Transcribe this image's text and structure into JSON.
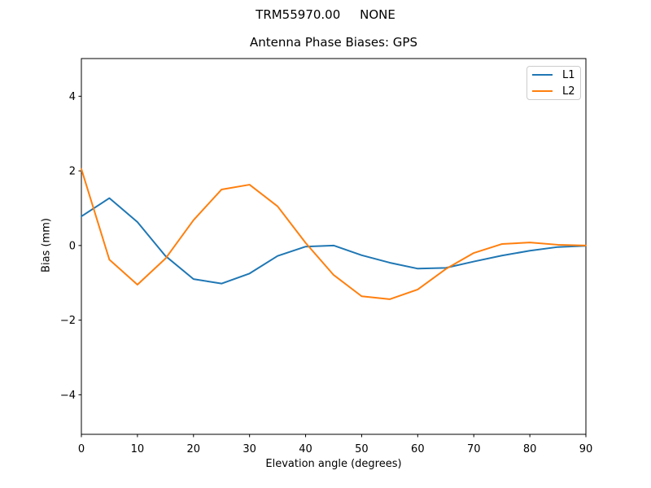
{
  "figure": {
    "suptitle": "TRM55970.00     NONE",
    "title": "Antenna Phase Biases: GPS",
    "background": "#ffffff"
  },
  "chart_data": {
    "type": "line",
    "suptitle": "TRM55970.00     NONE",
    "title": "Antenna Phase Biases: GPS",
    "xlabel": "Elevation angle (degrees)",
    "ylabel": "Bias (mm)",
    "xlim": [
      0,
      90
    ],
    "ylim": [
      -5.06,
      5.01
    ],
    "xticks": [
      0,
      10,
      20,
      30,
      40,
      50,
      60,
      70,
      80,
      90
    ],
    "yticks": [
      -4,
      -2,
      0,
      2,
      4
    ],
    "grid": false,
    "legend_position": "upper right",
    "x": [
      0,
      5,
      10,
      15,
      20,
      25,
      30,
      35,
      40,
      45,
      50,
      55,
      60,
      65,
      70,
      75,
      80,
      85,
      90
    ],
    "series": [
      {
        "name": "L1",
        "color": "#1f77b4",
        "values": [
          0.78,
          1.27,
          0.63,
          -0.28,
          -0.9,
          -1.02,
          -0.75,
          -0.28,
          -0.03,
          0.0,
          -0.26,
          -0.46,
          -0.62,
          -0.6,
          -0.43,
          -0.27,
          -0.14,
          -0.04,
          -0.01
        ]
      },
      {
        "name": "L2",
        "color": "#ff7f0e",
        "values": [
          2.05,
          -0.38,
          -1.05,
          -0.35,
          0.68,
          1.5,
          1.63,
          1.05,
          0.07,
          -0.79,
          -1.36,
          -1.44,
          -1.18,
          -0.63,
          -0.2,
          0.04,
          0.08,
          0.02,
          0.0
        ]
      }
    ]
  },
  "legend": {
    "items": [
      {
        "label": "L1",
        "color": "#1f77b4"
      },
      {
        "label": "L2",
        "color": "#ff7f0e"
      }
    ]
  }
}
